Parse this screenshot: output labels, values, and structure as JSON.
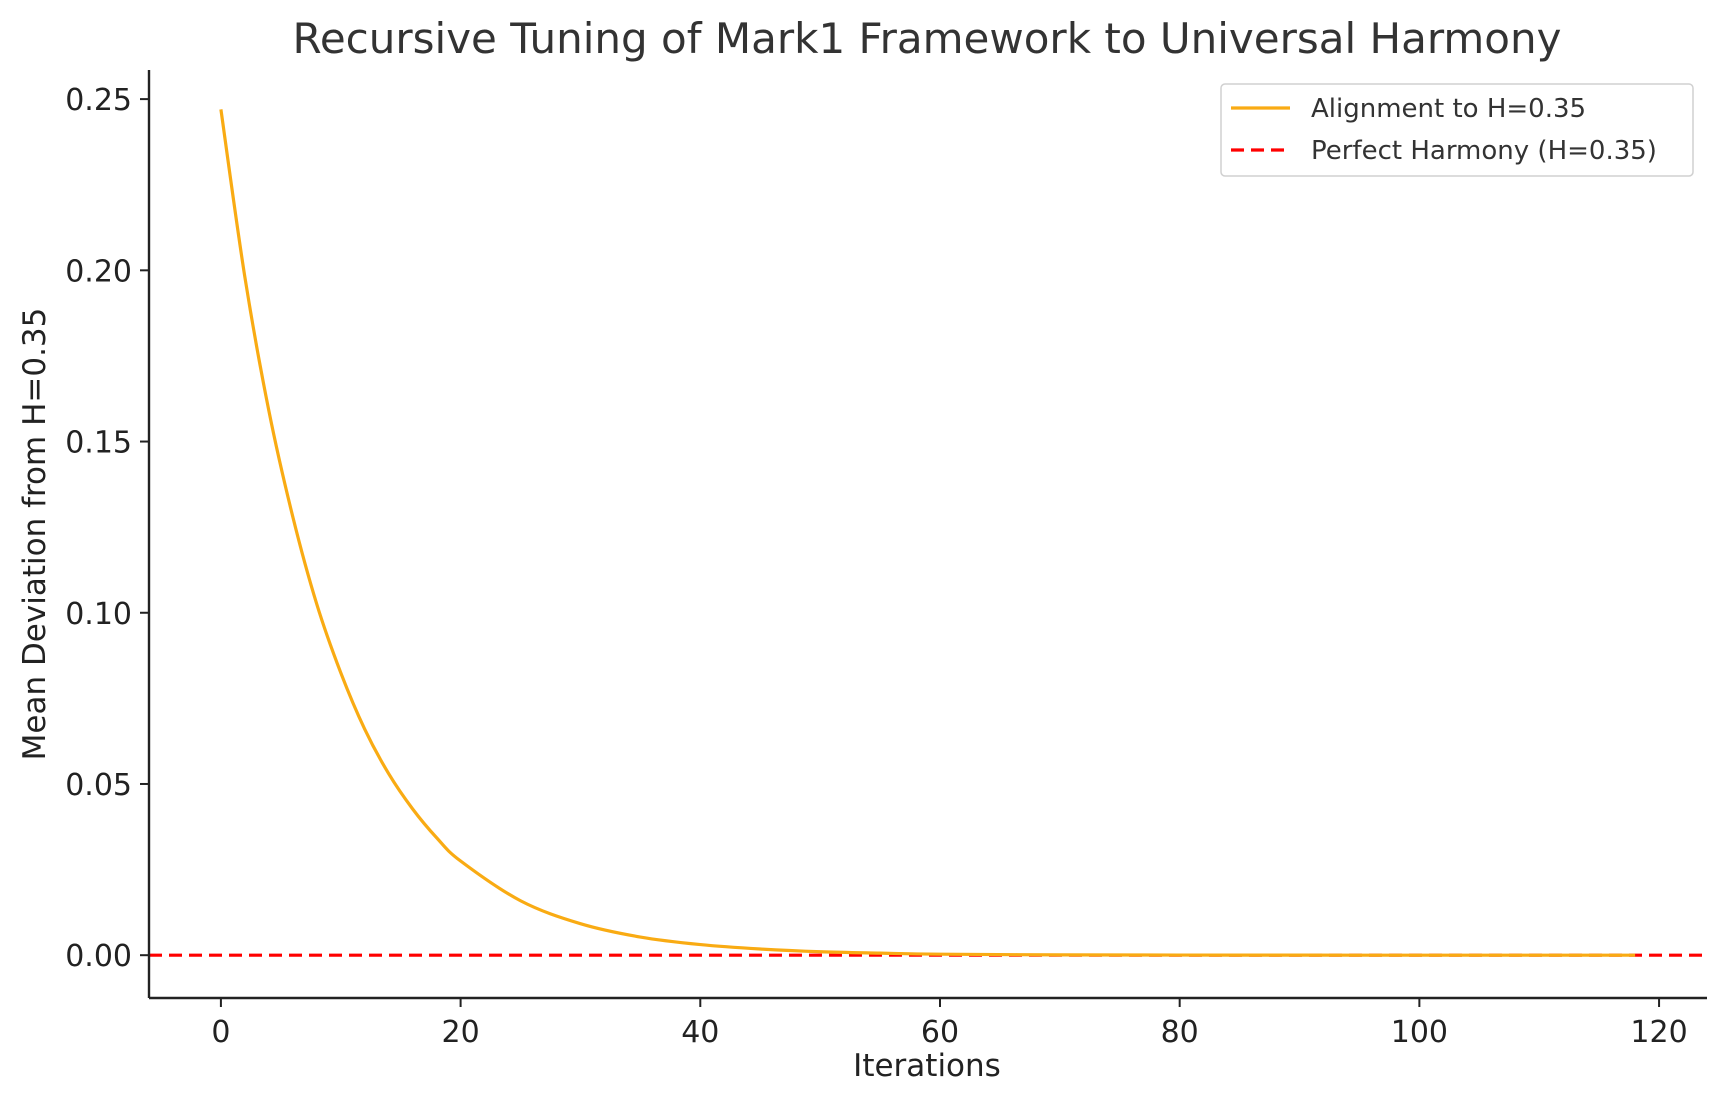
{
  "chart_data": {
    "type": "line",
    "title": "Recursive Tuning of Mark1 Framework to Universal Harmony",
    "xlabel": "Iterations",
    "ylabel": "Mean Deviation from H=0.35",
    "xlim": [
      -6,
      124
    ],
    "ylim": [
      -0.0125,
      0.2585
    ],
    "xticks": [
      0,
      20,
      40,
      60,
      80,
      100,
      120
    ],
    "xtick_labels": [
      "0",
      "20",
      "40",
      "60",
      "80",
      "100",
      "120"
    ],
    "yticks": [
      0.0,
      0.05,
      0.1,
      0.15,
      0.2,
      0.25
    ],
    "ytick_labels": [
      "0.00",
      "0.05",
      "0.10",
      "0.15",
      "0.20",
      "0.25"
    ],
    "grid": false,
    "legend_position": "top-right",
    "series": [
      {
        "name": "Alignment to H=0.35",
        "color": "#f9ab13",
        "line_style": "solid",
        "x": [
          0,
          2,
          4,
          6,
          8,
          10,
          12,
          14,
          16,
          18,
          20,
          25,
          30,
          35,
          40,
          45,
          50,
          55,
          60,
          70,
          80,
          90,
          100,
          110,
          118
        ],
        "y": [
          0.247,
          0.198,
          0.159,
          0.128,
          0.1025,
          0.0825,
          0.066,
          0.053,
          0.0427,
          0.0343,
          0.0275,
          0.0159,
          0.0092,
          0.0053,
          0.0031,
          0.0018,
          0.001,
          0.0006,
          0.0003,
          0.0001,
          4e-05,
          1e-05,
          0.0,
          0.0,
          0.0
        ]
      },
      {
        "name": "Perfect Harmony (H=0.35)",
        "color": "#ff0000",
        "line_style": "dashed",
        "type": "hline",
        "y_value": 0.0
      }
    ]
  }
}
